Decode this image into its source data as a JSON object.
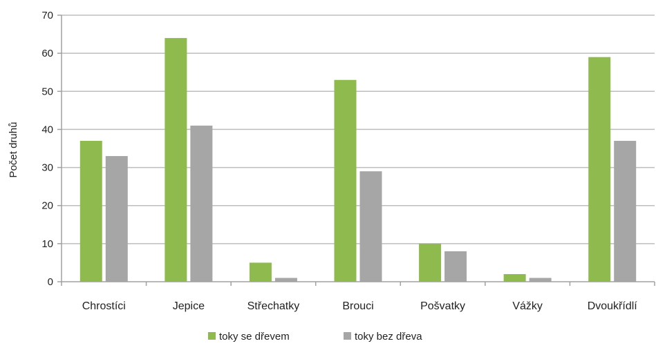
{
  "chart_data": {
    "type": "bar",
    "categories": [
      "Chrostíci",
      "Jepice",
      "Střechatky",
      "Brouci",
      "Pošvatky",
      "Vážky",
      "Dvoukřídlí"
    ],
    "series": [
      {
        "name": "toky se dřevem",
        "color": "#8fbb4e",
        "values": [
          37,
          64,
          5,
          53,
          10,
          2,
          59
        ]
      },
      {
        "name": "toky bez dřeva",
        "color": "#a6a6a6",
        "values": [
          33,
          41,
          1,
          29,
          8,
          1,
          37
        ]
      }
    ],
    "title": "",
    "xlabel": "",
    "ylabel": "Počet druhů",
    "ylim": [
      0,
      70
    ],
    "yticks": [
      0,
      10,
      20,
      30,
      40,
      50,
      60,
      70
    ],
    "grid": true,
    "legend_position": "bottom"
  }
}
